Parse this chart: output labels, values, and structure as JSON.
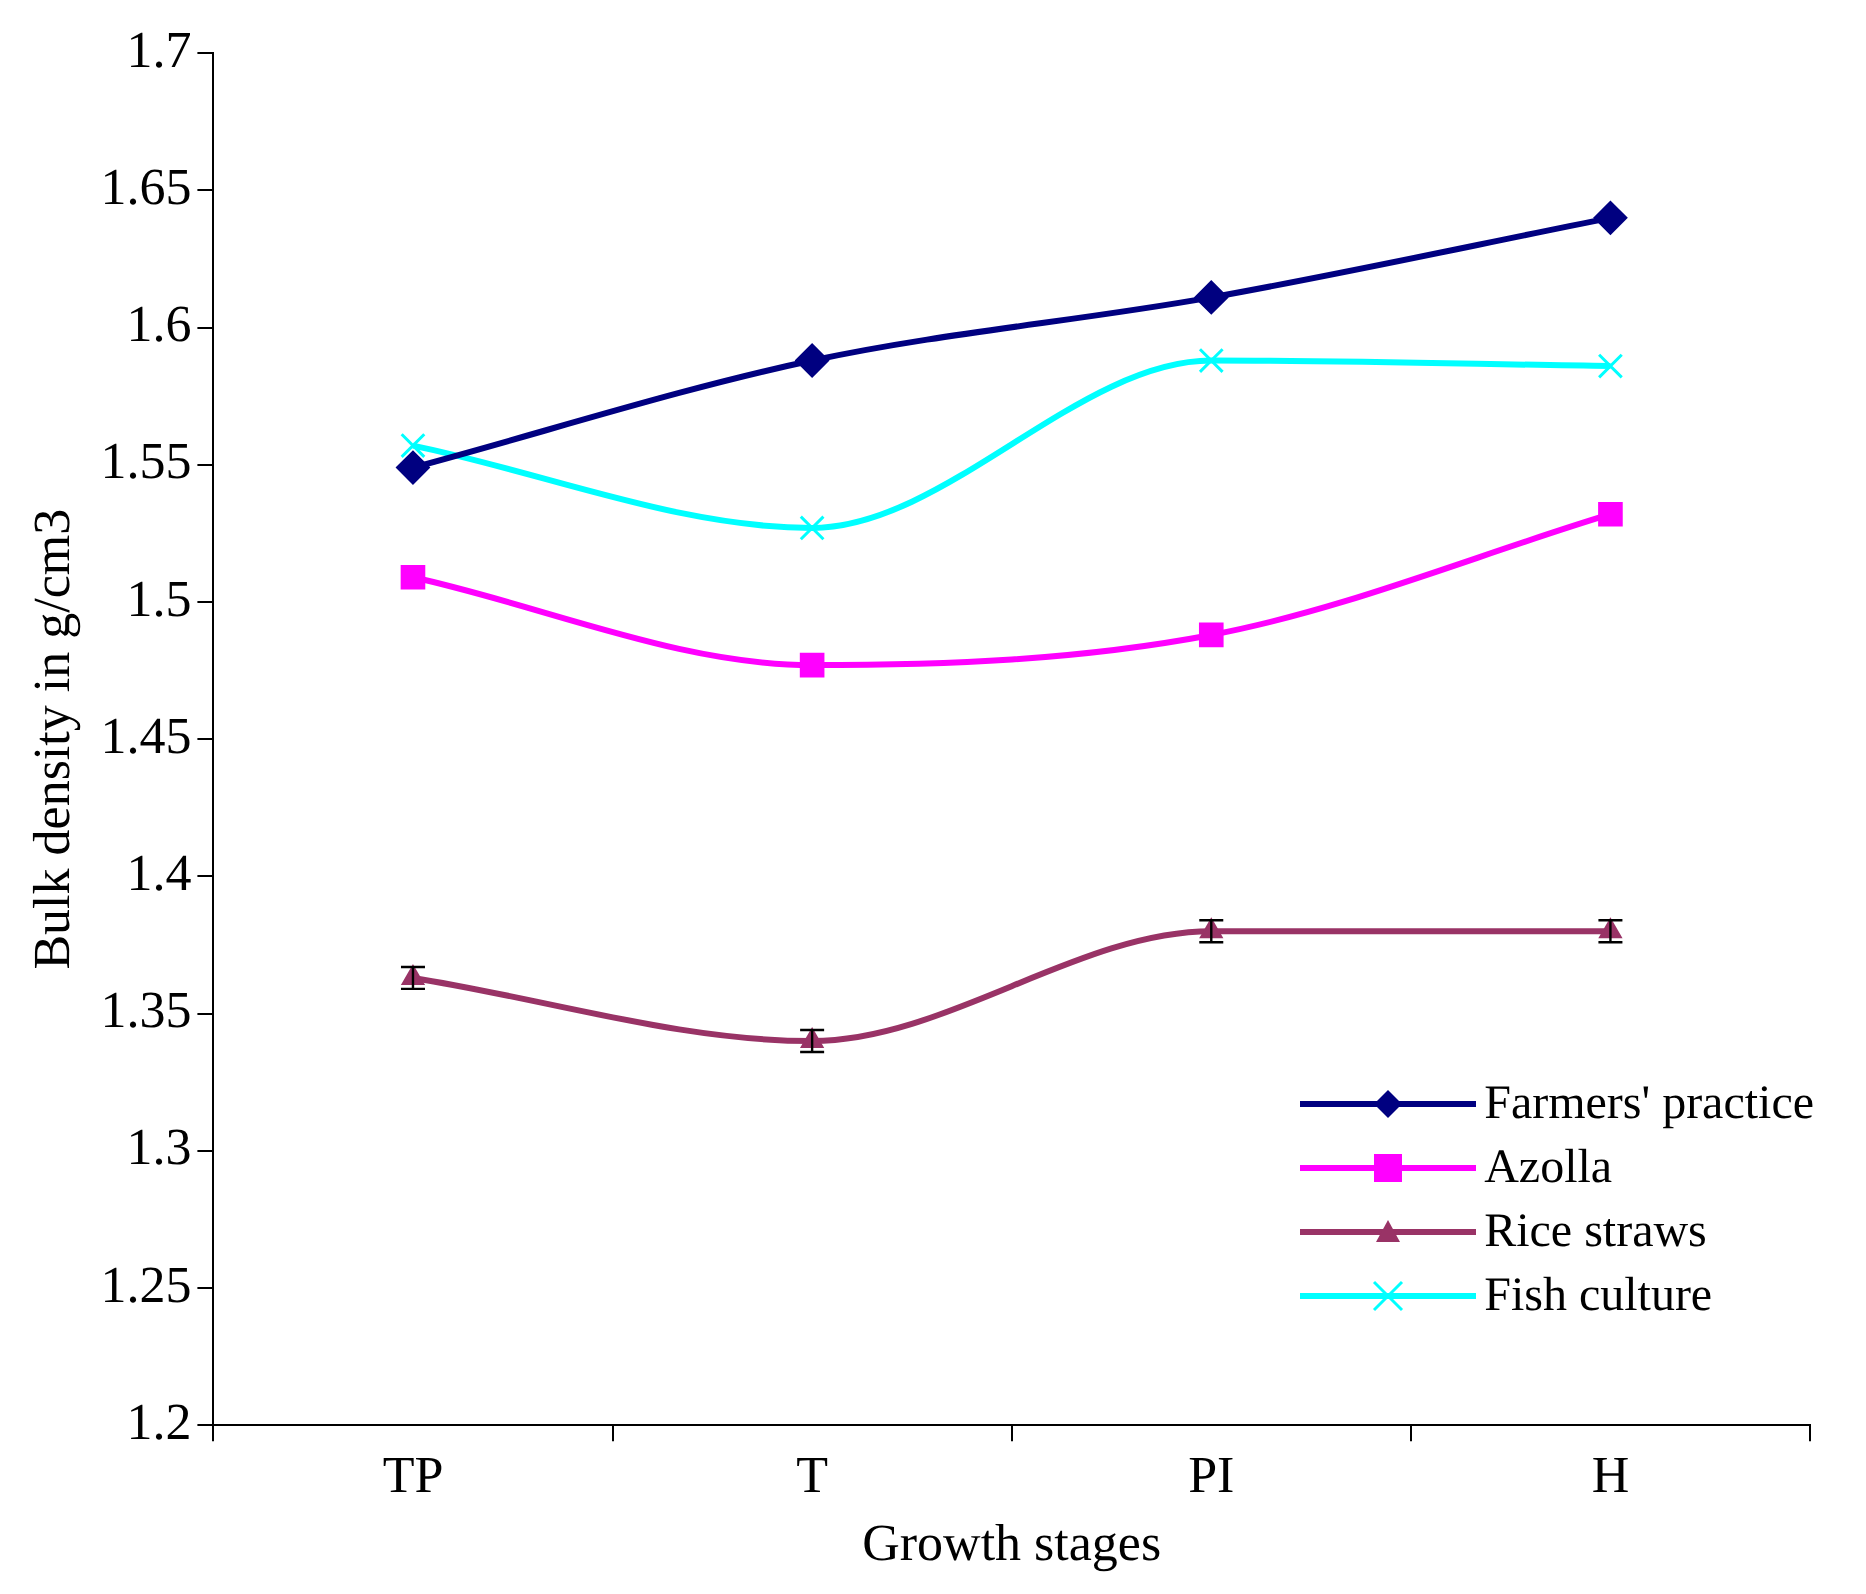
{
  "chart_data": {
    "type": "line",
    "xlabel": "Growth stages",
    "ylabel": "Bulk density in g/cm3",
    "categories": [
      "TP",
      "T",
      "PI",
      "H"
    ],
    "series": [
      {
        "name": "Farmers' practice",
        "color": "#000080",
        "marker": "diamond",
        "values": [
          1.549,
          1.588,
          1.611,
          1.64
        ]
      },
      {
        "name": "Azolla",
        "color": "#ff00ff",
        "marker": "square",
        "values": [
          1.509,
          1.477,
          1.488,
          1.532
        ]
      },
      {
        "name": "Rice straws",
        "color": "#993366",
        "marker": "triangle",
        "values": [
          1.363,
          1.34,
          1.38,
          1.38
        ],
        "errors": [
          0.004,
          0.004,
          0.004,
          0.004
        ]
      },
      {
        "name": "Fish culture",
        "color": "#00ffff",
        "marker": "cross",
        "values": [
          1.557,
          1.527,
          1.588,
          1.586
        ]
      }
    ],
    "ylim": [
      1.2,
      1.7
    ],
    "yticks": [
      1.2,
      1.25,
      1.3,
      1.35,
      1.4,
      1.45,
      1.5,
      1.55,
      1.6,
      1.65,
      1.7
    ],
    "grid": false,
    "legend": "bottom right"
  }
}
